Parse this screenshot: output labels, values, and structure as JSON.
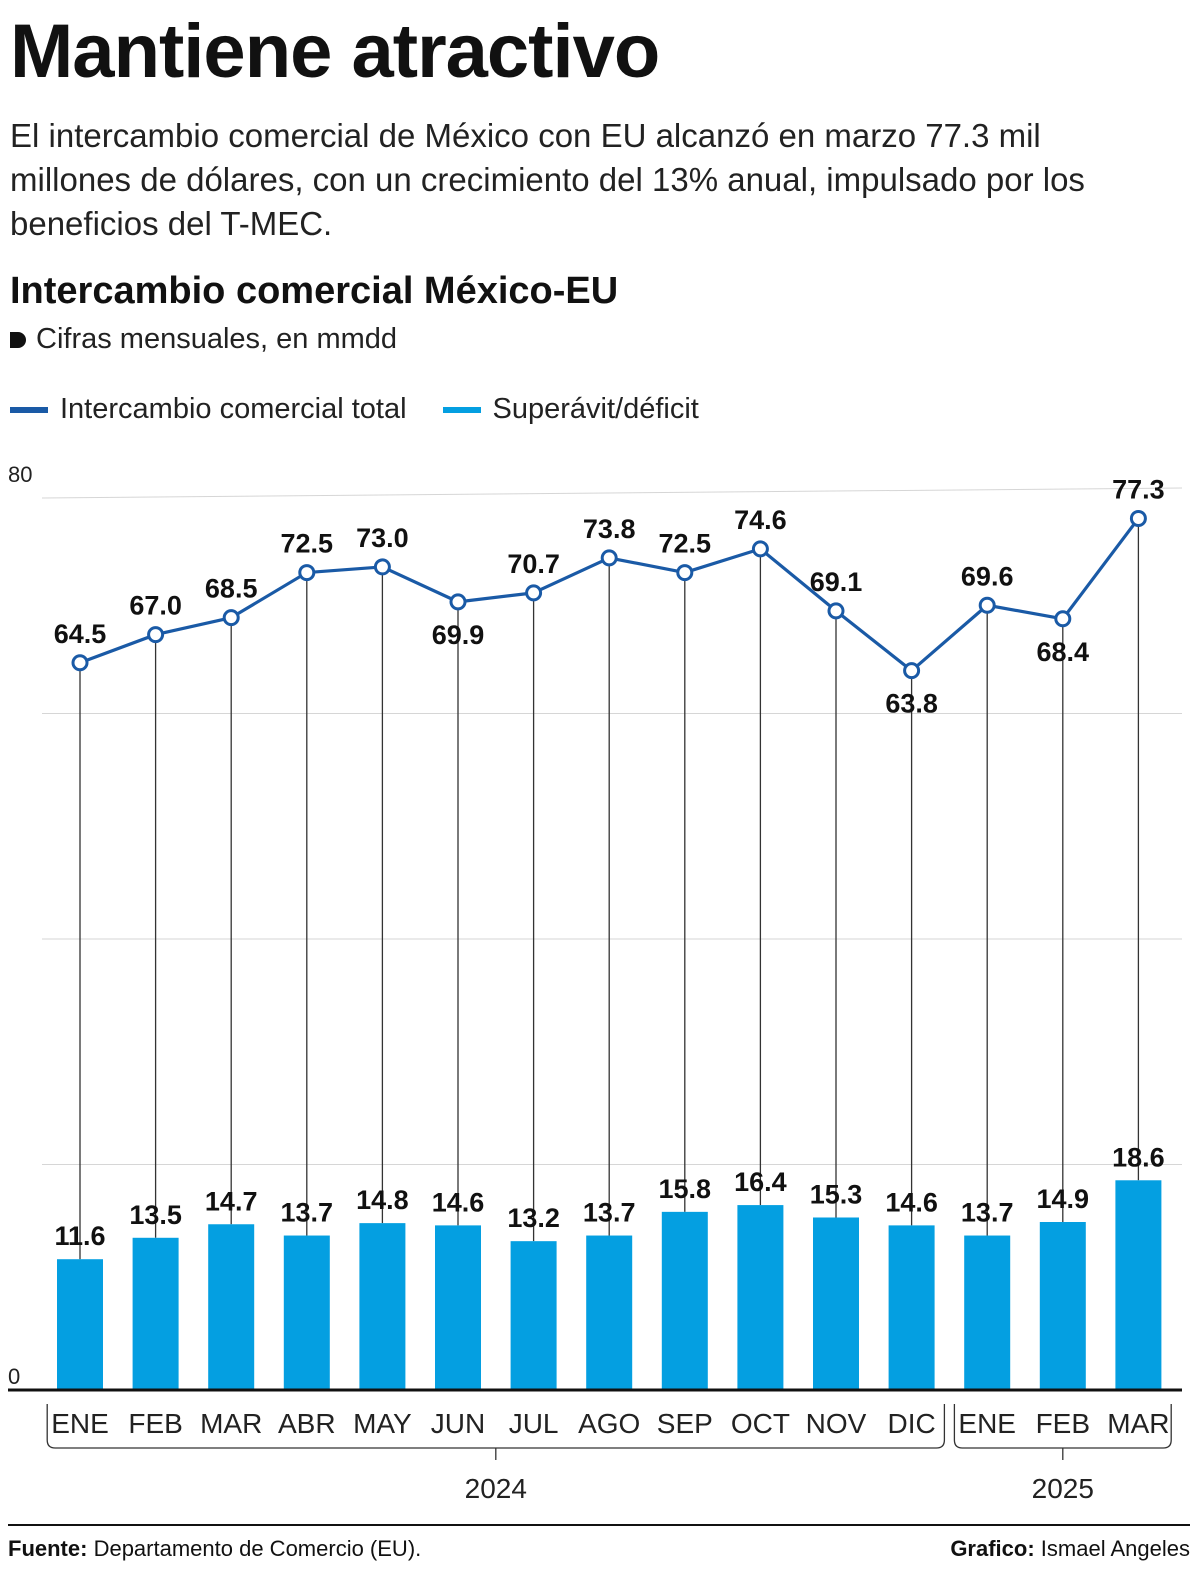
{
  "headline": "Mantiene atractivo",
  "intro": "El intercambio comercial de México con EU alcanzó en marzo 77.3 mil millones de dólares, con un crecimiento del 13% anual, impulsado por los beneficios del T-MEC.",
  "footer": {
    "source_label": "Fuente:",
    "source": "Departamento de Comercio (EU).",
    "credit_label": "Grafico:",
    "credit": "Ismael Angeles"
  },
  "chart_data": {
    "type": "bar",
    "title": "Intercambio comercial México-EU",
    "subtitle": "Cifras mensuales, en mmdd",
    "categories": [
      "ENE",
      "FEB",
      "MAR",
      "ABR",
      "MAY",
      "JUN",
      "JUL",
      "AGO",
      "SEP",
      "OCT",
      "NOV",
      "DIC",
      "ENE",
      "FEB",
      "MAR"
    ],
    "groups": [
      {
        "label": "2024",
        "count": 12
      },
      {
        "label": "2025",
        "count": 3
      }
    ],
    "series": [
      {
        "name": "Intercambio comercial total",
        "type": "line",
        "color": "#1a5aa6",
        "values": [
          64.5,
          67.0,
          68.5,
          72.5,
          73.0,
          69.9,
          70.7,
          73.8,
          72.5,
          74.6,
          69.1,
          63.8,
          69.6,
          68.4,
          77.3
        ],
        "label_position": [
          "above",
          "above",
          "above",
          "above",
          "above",
          "below",
          "above",
          "above",
          "above",
          "above",
          "above",
          "below",
          "above",
          "below",
          "above"
        ]
      },
      {
        "name": "Superávit/déficit",
        "type": "bar",
        "color": "#049fe1",
        "values": [
          11.6,
          13.5,
          14.7,
          13.7,
          14.8,
          14.6,
          13.2,
          13.7,
          15.8,
          16.4,
          15.3,
          14.6,
          13.7,
          14.9,
          18.6
        ],
        "label_position": "above"
      }
    ],
    "ylim": [
      0,
      80
    ],
    "y_ticks": [
      0,
      20,
      40,
      60,
      80
    ],
    "y_tick_labels_shown": [
      "0",
      "80"
    ],
    "grid": true,
    "legend": "top-left"
  }
}
